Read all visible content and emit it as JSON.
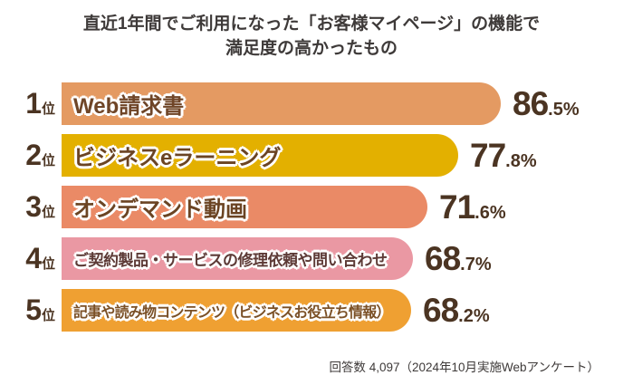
{
  "title": {
    "line1": "直近1年間でご利用になった「お客様マイページ」の機能で",
    "line2": "満足度の高かったもの"
  },
  "footer": "回答数 4,097（2024年10月実施Webアンケート）",
  "chart_data": {
    "type": "bar",
    "orientation": "horizontal",
    "title": "直近1年間でご利用になった「お客様マイページ」の機能で満足度の高かったもの",
    "categories": [
      "Web請求書",
      "ビジネスeラーニング",
      "オンデマンド動画",
      "ご契約製品・サービスの修理依頼や問い合わせ",
      "記事や読み物コンテンツ（ビジネスお役立ち情報）"
    ],
    "values": [
      86.5,
      77.8,
      71.6,
      68.7,
      68.2
    ],
    "unit": "%",
    "ranks": [
      "1",
      "2",
      "3",
      "4",
      "5"
    ],
    "rank_suffix": "位",
    "xlim": [
      0,
      100
    ],
    "grid": false,
    "legend": "none",
    "bar_colors": [
      "#e49a62",
      "#e3b000",
      "#ea8a66",
      "#ea98a3",
      "#efa032"
    ],
    "label_colors": [
      "#6f4527",
      "#6b4423",
      "#6b4423",
      "#5d3a36",
      "#7b5026"
    ],
    "label_sizes": [
      "lg",
      "lg",
      "lg",
      "md",
      "sm"
    ],
    "source_note": "回答数 4,097（2024年10月実施Webアンケート）"
  }
}
